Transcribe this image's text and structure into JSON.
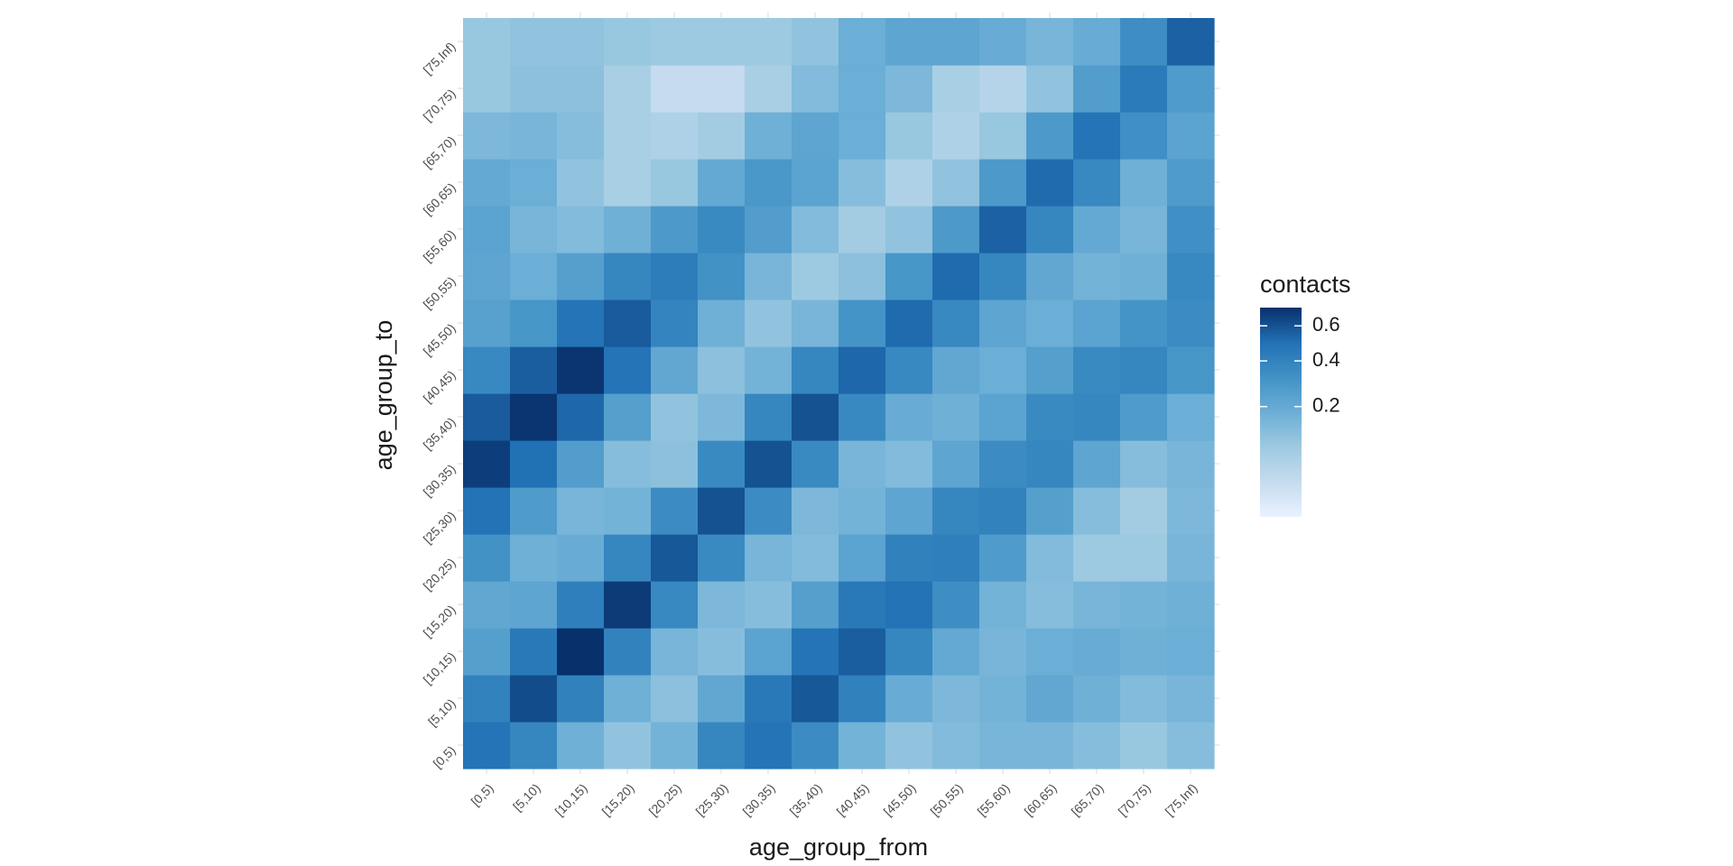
{
  "chart_data": {
    "type": "heatmap",
    "xlabel": "age_group_from",
    "ylabel": "age_group_to",
    "x_categories": [
      "[0,5)",
      "[5,10)",
      "[10,15)",
      "[15,20)",
      "[20,25)",
      "[25,30)",
      "[30,35)",
      "[35,40)",
      "[40,45)",
      "[45,50)",
      "[50,55)",
      "[55,60)",
      "[60,65)",
      "[65,70)",
      "[70,75)",
      "[75,Inf)"
    ],
    "y_categories": [
      "[0,5)",
      "[5,10)",
      "[10,15)",
      "[15,20)",
      "[20,25)",
      "[25,30)",
      "[30,35)",
      "[35,40)",
      "[40,45)",
      "[45,50)",
      "[50,55)",
      "[55,60)",
      "[60,65)",
      "[65,70)",
      "[70,75)",
      "[75,Inf)"
    ],
    "values": [
      [
        0.48,
        0.38,
        0.17,
        0.1,
        0.16,
        0.38,
        0.48,
        0.35,
        0.16,
        0.1,
        0.13,
        0.15,
        0.15,
        0.12,
        0.09,
        0.12
      ],
      [
        0.4,
        0.62,
        0.41,
        0.17,
        0.11,
        0.21,
        0.45,
        0.58,
        0.41,
        0.19,
        0.14,
        0.16,
        0.21,
        0.17,
        0.13,
        0.15
      ],
      [
        0.25,
        0.45,
        0.72,
        0.4,
        0.15,
        0.12,
        0.23,
        0.48,
        0.56,
        0.38,
        0.2,
        0.15,
        0.18,
        0.19,
        0.17,
        0.18
      ],
      [
        0.21,
        0.22,
        0.42,
        0.68,
        0.37,
        0.14,
        0.12,
        0.25,
        0.45,
        0.49,
        0.34,
        0.16,
        0.12,
        0.15,
        0.16,
        0.17
      ],
      [
        0.32,
        0.17,
        0.19,
        0.38,
        0.58,
        0.36,
        0.15,
        0.13,
        0.23,
        0.41,
        0.42,
        0.27,
        0.13,
        0.08,
        0.08,
        0.15
      ],
      [
        0.49,
        0.27,
        0.15,
        0.16,
        0.35,
        0.6,
        0.35,
        0.14,
        0.16,
        0.22,
        0.38,
        0.4,
        0.25,
        0.12,
        0.07,
        0.14
      ],
      [
        0.67,
        0.5,
        0.26,
        0.12,
        0.11,
        0.36,
        0.6,
        0.36,
        0.15,
        0.13,
        0.22,
        0.35,
        0.38,
        0.22,
        0.12,
        0.15
      ],
      [
        0.57,
        0.7,
        0.53,
        0.25,
        0.1,
        0.14,
        0.38,
        0.6,
        0.37,
        0.19,
        0.17,
        0.23,
        0.36,
        0.38,
        0.27,
        0.18
      ],
      [
        0.37,
        0.56,
        0.7,
        0.48,
        0.21,
        0.11,
        0.16,
        0.38,
        0.53,
        0.37,
        0.21,
        0.18,
        0.25,
        0.36,
        0.38,
        0.3
      ],
      [
        0.24,
        0.3,
        0.48,
        0.57,
        0.39,
        0.17,
        0.1,
        0.15,
        0.31,
        0.52,
        0.37,
        0.22,
        0.18,
        0.23,
        0.31,
        0.35
      ],
      [
        0.22,
        0.18,
        0.25,
        0.38,
        0.43,
        0.32,
        0.15,
        0.08,
        0.11,
        0.3,
        0.52,
        0.38,
        0.21,
        0.16,
        0.17,
        0.37
      ],
      [
        0.23,
        0.15,
        0.13,
        0.17,
        0.28,
        0.36,
        0.26,
        0.13,
        0.07,
        0.1,
        0.28,
        0.55,
        0.38,
        0.2,
        0.15,
        0.33
      ],
      [
        0.2,
        0.18,
        0.1,
        0.06,
        0.09,
        0.2,
        0.29,
        0.23,
        0.12,
        0.05,
        0.1,
        0.28,
        0.52,
        0.37,
        0.17,
        0.27
      ],
      [
        0.14,
        0.15,
        0.12,
        0.06,
        0.05,
        0.07,
        0.17,
        0.22,
        0.18,
        0.09,
        0.05,
        0.09,
        0.28,
        0.48,
        0.33,
        0.23
      ],
      [
        0.09,
        0.11,
        0.11,
        0.06,
        0.02,
        0.02,
        0.06,
        0.13,
        0.18,
        0.14,
        0.06,
        0.04,
        0.1,
        0.26,
        0.44,
        0.27
      ],
      [
        0.09,
        0.1,
        0.1,
        0.09,
        0.08,
        0.08,
        0.08,
        0.1,
        0.18,
        0.22,
        0.22,
        0.19,
        0.15,
        0.19,
        0.34,
        0.55
      ]
    ],
    "value_layout": "values[y_index][x_index], y_index 0 = [0,5) at bottom",
    "legend": {
      "title": "contacts",
      "labels": [
        "0.2",
        "0.4",
        "0.6"
      ],
      "breaks": [
        0.2,
        0.4,
        0.6
      ],
      "scale": "sqrt",
      "min": 0.0,
      "max": 0.72,
      "placement": "right"
    },
    "colors": {
      "low": "#eaf1ff",
      "mid1": "#c6dbef",
      "mid2": "#9ecae1",
      "mid3": "#6baed6",
      "mid4": "#4292c6",
      "mid5": "#2171b5",
      "high": "#08306b"
    },
    "grid": true
  }
}
